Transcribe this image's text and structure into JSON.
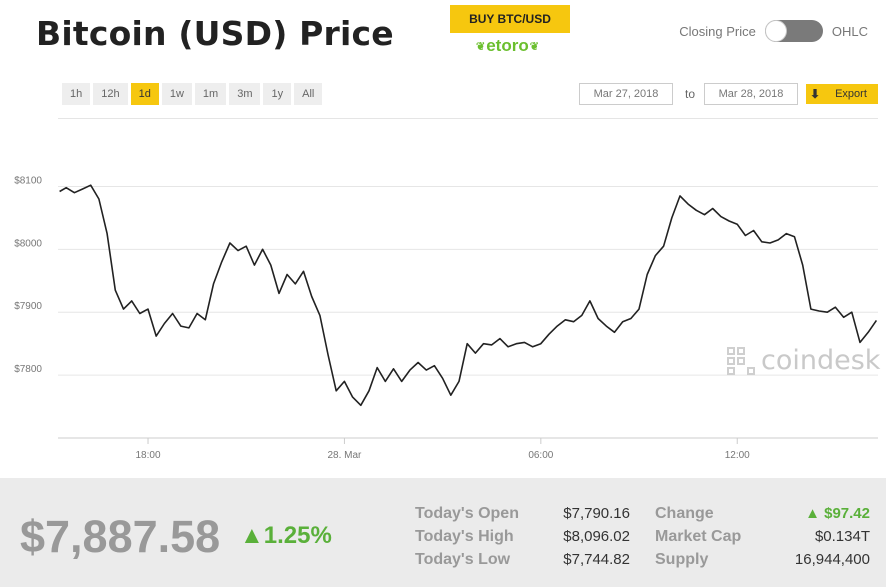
{
  "header": {
    "title": "Bitcoin (USD) Price",
    "buy_label": "BUY BTC/USD",
    "broker_name": "etoro",
    "toggle_left": "Closing Price",
    "toggle_right": "OHLC"
  },
  "ranges": [
    {
      "label": "1h"
    },
    {
      "label": "12h"
    },
    {
      "label": "1d",
      "active": true
    },
    {
      "label": "1w"
    },
    {
      "label": "1m"
    },
    {
      "label": "3m"
    },
    {
      "label": "1y"
    },
    {
      "label": "All"
    }
  ],
  "date_range": {
    "from": "Mar 27, 2018",
    "to_label": "to",
    "to": "Mar 28, 2018",
    "export_label": "Export"
  },
  "watermark": "coindesk",
  "chart_data": {
    "type": "line",
    "ylim": [
      7700,
      8150
    ],
    "y_ticks": [
      "$8100",
      "$8000",
      "$7900",
      "$7800"
    ],
    "y_tick_values": [
      8100,
      8000,
      7900,
      7800
    ],
    "x_ticks": [
      "18:00",
      "28. Mar",
      "06:00",
      "12:00"
    ],
    "x_tick_hours": [
      18,
      24,
      30,
      36
    ],
    "x_range_hours": [
      15.25,
      40.3
    ],
    "series": [
      {
        "color": "#222222",
        "points": [
          [
            15.3,
            8092
          ],
          [
            15.5,
            8098
          ],
          [
            15.75,
            8090
          ],
          [
            16.0,
            8096
          ],
          [
            16.25,
            8102
          ],
          [
            16.5,
            8080
          ],
          [
            16.75,
            8025
          ],
          [
            17.0,
            7935
          ],
          [
            17.25,
            7905
          ],
          [
            17.5,
            7918
          ],
          [
            17.75,
            7898
          ],
          [
            18.0,
            7905
          ],
          [
            18.25,
            7862
          ],
          [
            18.5,
            7882
          ],
          [
            18.75,
            7898
          ],
          [
            19.0,
            7878
          ],
          [
            19.25,
            7875
          ],
          [
            19.5,
            7898
          ],
          [
            19.75,
            7888
          ],
          [
            20.0,
            7945
          ],
          [
            20.25,
            7980
          ],
          [
            20.5,
            8010
          ],
          [
            20.75,
            7998
          ],
          [
            21.0,
            8005
          ],
          [
            21.25,
            7975
          ],
          [
            21.5,
            8000
          ],
          [
            21.75,
            7975
          ],
          [
            22.0,
            7930
          ],
          [
            22.25,
            7960
          ],
          [
            22.5,
            7945
          ],
          [
            22.75,
            7965
          ],
          [
            23.0,
            7925
          ],
          [
            23.25,
            7895
          ],
          [
            23.5,
            7832
          ],
          [
            23.75,
            7775
          ],
          [
            24.0,
            7790
          ],
          [
            24.25,
            7765
          ],
          [
            24.5,
            7752
          ],
          [
            24.75,
            7775
          ],
          [
            25.0,
            7812
          ],
          [
            25.25,
            7790
          ],
          [
            25.5,
            7810
          ],
          [
            25.75,
            7790
          ],
          [
            26.0,
            7808
          ],
          [
            26.25,
            7820
          ],
          [
            26.5,
            7808
          ],
          [
            26.75,
            7815
          ],
          [
            27.0,
            7795
          ],
          [
            27.25,
            7768
          ],
          [
            27.5,
            7790
          ],
          [
            27.75,
            7850
          ],
          [
            28.0,
            7835
          ],
          [
            28.25,
            7850
          ],
          [
            28.5,
            7848
          ],
          [
            28.75,
            7858
          ],
          [
            29.0,
            7845
          ],
          [
            29.25,
            7850
          ],
          [
            29.5,
            7852
          ],
          [
            29.75,
            7845
          ],
          [
            30.0,
            7850
          ],
          [
            30.25,
            7865
          ],
          [
            30.5,
            7878
          ],
          [
            30.75,
            7888
          ],
          [
            31.0,
            7885
          ],
          [
            31.25,
            7895
          ],
          [
            31.5,
            7918
          ],
          [
            31.75,
            7890
          ],
          [
            32.0,
            7878
          ],
          [
            32.25,
            7868
          ],
          [
            32.5,
            7885
          ],
          [
            32.75,
            7890
          ],
          [
            33.0,
            7905
          ],
          [
            33.25,
            7960
          ],
          [
            33.5,
            7990
          ],
          [
            33.75,
            8005
          ],
          [
            34.0,
            8050
          ],
          [
            34.25,
            8085
          ],
          [
            34.5,
            8072
          ],
          [
            34.75,
            8062
          ],
          [
            35.0,
            8055
          ],
          [
            35.25,
            8065
          ],
          [
            35.5,
            8052
          ],
          [
            35.75,
            8045
          ],
          [
            36.0,
            8040
          ],
          [
            36.25,
            8022
          ],
          [
            36.5,
            8030
          ],
          [
            36.75,
            8012
          ],
          [
            37.0,
            8010
          ],
          [
            37.25,
            8015
          ],
          [
            37.5,
            8025
          ],
          [
            37.75,
            8020
          ],
          [
            38.0,
            7975
          ],
          [
            38.25,
            7905
          ],
          [
            38.5,
            7902
          ],
          [
            38.75,
            7900
          ],
          [
            39.0,
            7908
          ],
          [
            39.25,
            7892
          ],
          [
            39.5,
            7900
          ],
          [
            39.75,
            7852
          ],
          [
            40.0,
            7868
          ],
          [
            40.25,
            7887
          ]
        ]
      }
    ]
  },
  "summary": {
    "price": "$7,887.58",
    "change_pct": "▲1.25%",
    "rows": [
      {
        "label": "Today's Open",
        "value": "$7,790.16",
        "label2": "Change",
        "value2": "▲ $97.42"
      },
      {
        "label": "Today's High",
        "value": "$8,096.02",
        "label2": "Market Cap",
        "value2": "$0.134T"
      },
      {
        "label": "Today's Low",
        "value": "$7,744.82",
        "label2": "Supply",
        "value2": "16,944,400"
      }
    ]
  },
  "colors": {
    "accent": "#f6c70f",
    "positive": "#5ab03a",
    "line": "#222222"
  }
}
